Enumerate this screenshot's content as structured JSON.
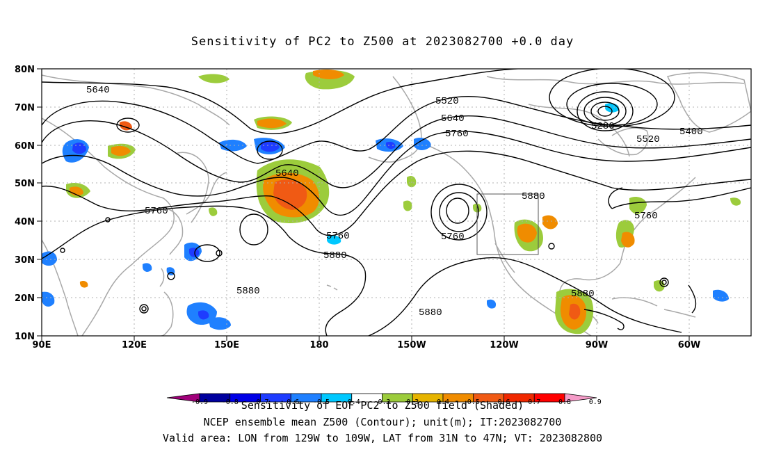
{
  "title": "Sensitivity of PC2 to Z500 at 2023082700 +0.0 day",
  "axes": {
    "lon_labels": [
      "90E",
      "120E",
      "150E",
      "180",
      "150W",
      "120W",
      "90W",
      "60W"
    ],
    "lat_labels": [
      "80N",
      "70N",
      "60N",
      "50N",
      "40N",
      "30N",
      "20N",
      "10N"
    ]
  },
  "contour_labels": [
    "5640",
    "5520",
    "5640",
    "5760",
    "5280",
    "5400",
    "5520",
    "5640",
    "5760",
    "5880",
    "5760",
    "5760",
    "5880",
    "5880",
    "5880",
    "5880",
    "5760"
  ],
  "colorbar": {
    "ticks": [
      "-0.9",
      "-0.8",
      "-0.7",
      "-0.6",
      "-0.5",
      "-0.4",
      "-0.3",
      "0.3",
      "0.4",
      "0.5",
      "0.6",
      "0.7",
      "0.8",
      "0.9"
    ],
    "colors": [
      "#a0007a",
      "#00009e",
      "#0000e6",
      "#1e3cff",
      "#1f80ff",
      "#00c8ff",
      "#ffffff",
      "#9ccc3c",
      "#e6b400",
      "#f08c00",
      "#f05a14",
      "#f02800",
      "#ff0000",
      "#f59bc8"
    ]
  },
  "footer": {
    "line1": "Sensitivity of EOF PC2 to Z500 field (Shaded)",
    "line2": "NCEP ensemble mean Z500 (Contour); unit(m); IT:2023082700",
    "line3": "Valid area: LON from 129W to 109W, LAT from 31N to 47N; VT: 2023082800"
  },
  "valid_area": {
    "lon_min": -129,
    "lon_max": -109,
    "lat_min": 31,
    "lat_max": 47
  }
}
